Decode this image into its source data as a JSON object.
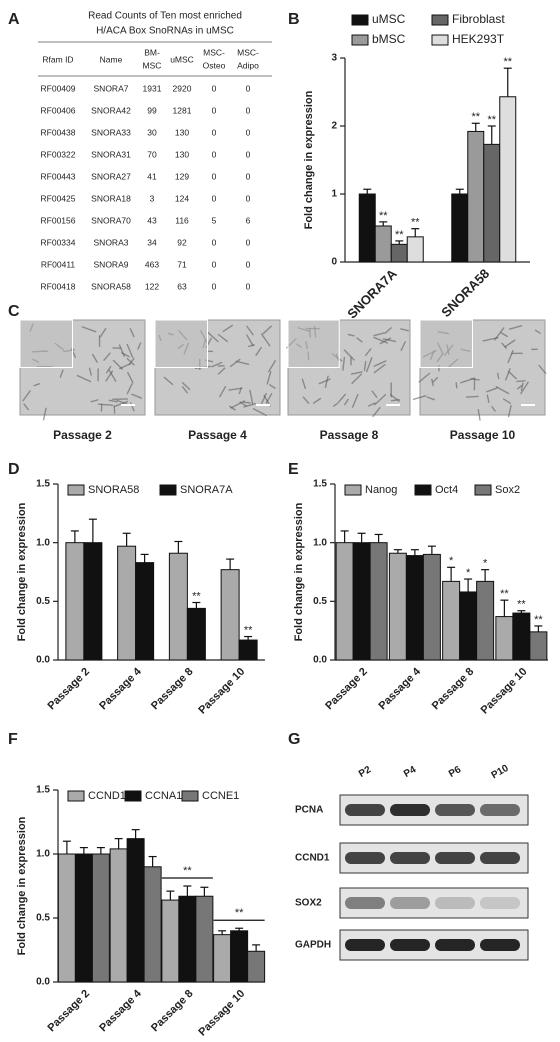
{
  "panel_labels": [
    "A",
    "B",
    "C",
    "D",
    "E",
    "F",
    "G"
  ],
  "table": {
    "title_lines": [
      "Read Counts of Ten most enriched",
      "H/ACA Box SnoRNAs in uMSC"
    ],
    "header": [
      [
        "Rfam ID"
      ],
      [
        "Name"
      ],
      [
        "BM-",
        "MSC"
      ],
      [
        "uMSC"
      ],
      [
        "MSC-",
        "Osteo"
      ],
      [
        "MSC-",
        "Adipo"
      ]
    ],
    "rows": [
      [
        "RF00409",
        "SNORA7",
        1931,
        2920,
        0,
        0
      ],
      [
        "RF00406",
        "SNORA42",
        99,
        1281,
        0,
        0
      ],
      [
        "RF00438",
        "SNORA33",
        30,
        130,
        0,
        0
      ],
      [
        "RF00322",
        "SNORA31",
        70,
        130,
        0,
        0
      ],
      [
        "RF00443",
        "SNORA27",
        41,
        129,
        0,
        0
      ],
      [
        "RF00425",
        "SNORA18",
        3,
        124,
        0,
        0
      ],
      [
        "RF00156",
        "SNORA70",
        43,
        116,
        5,
        6
      ],
      [
        "RF00334",
        "SNORA3",
        34,
        92,
        0,
        0
      ],
      [
        "RF00411",
        "SNORA9",
        463,
        71,
        0,
        0
      ],
      [
        "RF00418",
        "SNORA58",
        122,
        63,
        0,
        0
      ]
    ]
  },
  "micrographs": {
    "labels": [
      "Passage 2",
      "Passage 4",
      "Passage 8",
      "Passage 10"
    ]
  },
  "blot": {
    "lanes": [
      "P2",
      "P4",
      "P6",
      "P10"
    ],
    "proteins": [
      "PCNA",
      "CCND1",
      "SOX2",
      "GAPDH"
    ]
  },
  "chart_data": [
    {
      "type": "bar",
      "ylabel": "Fold change in expression",
      "categories": [
        "SNORA7A",
        "SNORA58"
      ],
      "series": [
        {
          "name": "uMSC",
          "color": "#111111",
          "values": [
            1.0,
            1.0
          ],
          "errors": [
            0.07,
            0.07
          ],
          "sig": [
            null,
            null
          ]
        },
        {
          "name": "bMSC",
          "color": "#9a9a9a",
          "values": [
            0.53,
            1.92
          ],
          "errors": [
            0.06,
            0.12
          ],
          "sig": [
            "**",
            "**"
          ]
        },
        {
          "name": "Fibroblast",
          "color": "#666666",
          "values": [
            0.26,
            1.73
          ],
          "errors": [
            0.05,
            0.27
          ],
          "sig": [
            "**",
            "**"
          ]
        },
        {
          "name": "HEK293T",
          "color": "#dedede",
          "values": [
            0.37,
            2.43
          ],
          "errors": [
            0.12,
            0.42
          ],
          "sig": [
            "**",
            "**"
          ]
        }
      ],
      "ylim": [
        0,
        3
      ],
      "yticks": [
        0,
        1,
        2,
        3
      ]
    },
    {
      "type": "bar",
      "ylabel": "Fold change in expression",
      "categories": [
        "Passage 2",
        "Passage 4",
        "Passage 8",
        "Passage 10"
      ],
      "series": [
        {
          "name": "SNORA58",
          "color": "#aaaaaa",
          "values": [
            1.0,
            0.97,
            0.91,
            0.77
          ],
          "errors": [
            0.1,
            0.11,
            0.1,
            0.09
          ],
          "sig": [
            null,
            null,
            null,
            null
          ]
        },
        {
          "name": "SNORA7A",
          "color": "#111111",
          "values": [
            1.0,
            0.83,
            0.44,
            0.17
          ],
          "errors": [
            0.2,
            0.07,
            0.05,
            0.03
          ],
          "sig": [
            null,
            null,
            "**",
            "**"
          ]
        }
      ],
      "ylim": [
        0,
        1.5
      ],
      "yticks": [
        {
          "value": 0,
          "label": "0.0"
        },
        0.5,
        {
          "value": 1,
          "label": "1.0"
        },
        1.5
      ]
    },
    {
      "type": "bar",
      "ylabel": "Fold change in expression",
      "categories": [
        "Passage 2",
        "Passage 4",
        "Passage 8",
        "Passage 10"
      ],
      "series": [
        {
          "name": "Nanog",
          "color": "#aaaaaa",
          "values": [
            1.0,
            0.91,
            0.67,
            0.37
          ],
          "errors": [
            0.1,
            0.03,
            0.12,
            0.14
          ],
          "sig": [
            null,
            null,
            "*",
            "**"
          ]
        },
        {
          "name": "Oct4",
          "color": "#111111",
          "values": [
            1.0,
            0.89,
            0.58,
            0.4
          ],
          "errors": [
            0.08,
            0.05,
            0.11,
            0.02
          ],
          "sig": [
            null,
            null,
            "*",
            "**"
          ]
        },
        {
          "name": "Sox2",
          "color": "#777777",
          "values": [
            1.0,
            0.9,
            0.67,
            0.24
          ],
          "errors": [
            0.07,
            0.07,
            0.1,
            0.05
          ],
          "sig": [
            null,
            null,
            "*",
            "**"
          ]
        }
      ],
      "ylim": [
        0,
        1.5
      ],
      "yticks": [
        {
          "value": 0,
          "label": "0.0"
        },
        0.5,
        {
          "value": 1,
          "label": "1.0"
        },
        1.5
      ]
    },
    {
      "type": "bar",
      "ylabel": "Fold change in expression",
      "categories": [
        "Passage 2",
        "Passage 4",
        "Passage 8",
        "Passage 10"
      ],
      "series": [
        {
          "name": "CCND1",
          "color": "#aaaaaa",
          "values": [
            1.0,
            1.04,
            0.64,
            0.37
          ],
          "errors": [
            0.1,
            0.08,
            0.07,
            0.03
          ]
        },
        {
          "name": "CCNA1",
          "color": "#111111",
          "values": [
            1.0,
            1.12,
            0.67,
            0.4
          ],
          "errors": [
            0.05,
            0.07,
            0.08,
            0.02
          ]
        },
        {
          "name": "CCNE1",
          "color": "#777777",
          "values": [
            1.0,
            0.9,
            0.67,
            0.24
          ],
          "errors": [
            0.05,
            0.08,
            0.07,
            0.05
          ]
        }
      ],
      "group_sig": [
        null,
        null,
        "**",
        "**"
      ],
      "ylim": [
        0,
        1.5
      ],
      "yticks": [
        {
          "value": 0,
          "label": "0.0"
        },
        0.5,
        {
          "value": 1,
          "label": "1.0"
        },
        1.5
      ]
    }
  ]
}
